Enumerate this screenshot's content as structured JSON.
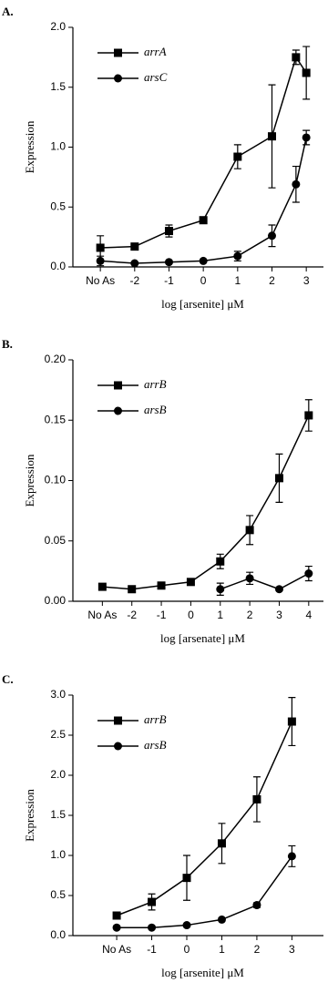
{
  "chart_data": [
    {
      "type": "line",
      "panel_label": "A.",
      "y_label": "Expression",
      "x_label": "log [arsenite] μM",
      "xlim": [
        -3.8,
        3.5
      ],
      "xticks": [
        {
          "value": -3,
          "label": "No As"
        },
        -2,
        -1,
        0,
        1,
        2,
        3
      ],
      "ylim": [
        0,
        2
      ],
      "yticks": [
        {
          "value": 0,
          "label": "0.0"
        },
        {
          "value": 0.5,
          "label": "0.5"
        },
        {
          "value": 1,
          "label": "1.0"
        },
        {
          "value": 1.5,
          "label": "1.5"
        },
        {
          "value": 2,
          "label": "2.0"
        }
      ],
      "series": [
        {
          "name": "arrA",
          "marker": "square",
          "color": "#000000",
          "x": [
            -3,
            -2,
            -1,
            0,
            1,
            2,
            2.7,
            3
          ],
          "values": [
            0.16,
            0.17,
            0.3,
            0.39,
            0.92,
            1.09,
            1.75,
            1.62
          ],
          "errors": [
            0.1,
            0.02,
            0.05,
            0.02,
            0.1,
            0.43,
            0.06,
            0.22
          ]
        },
        {
          "name": "arsC",
          "marker": "circle",
          "color": "#000000",
          "x": [
            -3,
            -2,
            -1,
            0,
            1,
            2,
            2.7,
            3
          ],
          "values": [
            0.05,
            0.03,
            0.04,
            0.05,
            0.09,
            0.26,
            0.69,
            1.08
          ],
          "errors": [
            0.04,
            0.01,
            0.01,
            0.01,
            0.04,
            0.09,
            0.15,
            0.06
          ]
        }
      ]
    },
    {
      "type": "line",
      "panel_label": "B.",
      "y_label": "Expression",
      "x_label": "log [arsenate] μM",
      "xlim": [
        -4,
        4.5
      ],
      "xticks": [
        {
          "value": -3,
          "label": "No As"
        },
        -2,
        -1,
        0,
        1,
        2,
        3,
        4
      ],
      "ylim": [
        0,
        0.2
      ],
      "yticks": [
        {
          "value": 0,
          "label": "0.00"
        },
        {
          "value": 0.05,
          "label": "0.05"
        },
        {
          "value": 0.1,
          "label": "0.10"
        },
        {
          "value": 0.15,
          "label": "0.15"
        },
        {
          "value": 0.2,
          "label": "0.20"
        }
      ],
      "series": [
        {
          "name": "arrB",
          "marker": "square",
          "color": "#000000",
          "x": [
            -3,
            -2,
            -1,
            0,
            1,
            2,
            3,
            4
          ],
          "values": [
            0.012,
            0.01,
            0.013,
            0.016,
            0.033,
            0.059,
            0.102,
            0.154
          ],
          "errors": [
            0.001,
            0.001,
            0.001,
            0.001,
            0.006,
            0.012,
            0.02,
            0.013
          ]
        },
        {
          "name": "arsB",
          "marker": "circle",
          "color": "#000000",
          "x": [
            1,
            2,
            3,
            4
          ],
          "values": [
            0.01,
            0.019,
            0.01,
            0.023
          ],
          "errors": [
            0.005,
            0.005,
            0.001,
            0.006
          ]
        }
      ]
    },
    {
      "type": "line",
      "panel_label": "C.",
      "y_label": "Expression",
      "x_label": "log [arsenite] μM",
      "xlim": [
        -3.25,
        3.9
      ],
      "xticks": [
        {
          "value": -2,
          "label": "No As"
        },
        -1,
        0,
        1,
        2,
        3
      ],
      "ylim": [
        0,
        3
      ],
      "yticks": [
        {
          "value": 0,
          "label": "0.0"
        },
        {
          "value": 0.5,
          "label": "0.5"
        },
        {
          "value": 1,
          "label": "1.0"
        },
        {
          "value": 1.5,
          "label": "1.5"
        },
        {
          "value": 2,
          "label": "2.0"
        },
        {
          "value": 2.5,
          "label": "2.5"
        },
        {
          "value": 3,
          "label": "3.0"
        }
      ],
      "series": [
        {
          "name": "arrB",
          "marker": "square",
          "color": "#000000",
          "x": [
            -2,
            -1,
            0,
            1,
            2,
            3
          ],
          "values": [
            0.25,
            0.42,
            0.72,
            1.15,
            1.7,
            2.67
          ],
          "errors": [
            0.03,
            0.1,
            0.28,
            0.25,
            0.28,
            0.3
          ]
        },
        {
          "name": "arsB",
          "marker": "circle",
          "color": "#000000",
          "x": [
            -2,
            -1,
            0,
            1,
            2,
            3
          ],
          "values": [
            0.1,
            0.1,
            0.13,
            0.2,
            0.38,
            0.99
          ],
          "errors": [
            0.01,
            0.01,
            0.01,
            0.02,
            0.03,
            0.13
          ]
        }
      ]
    }
  ]
}
